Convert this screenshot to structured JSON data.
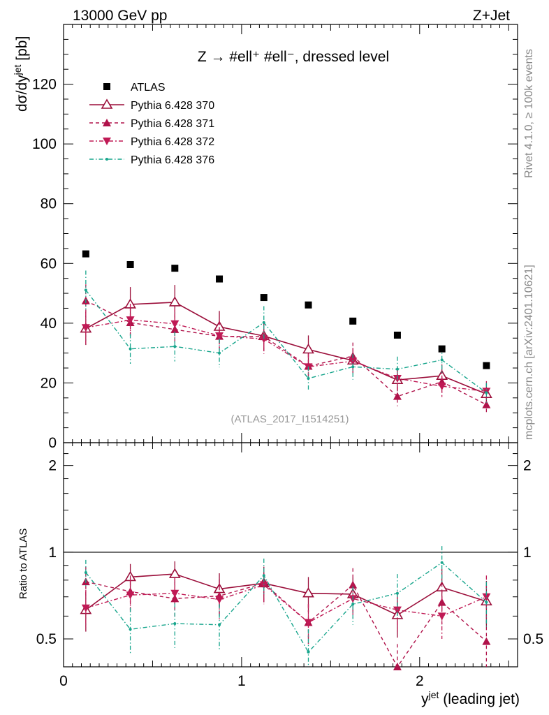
{
  "header": {
    "left": "13000 GeV pp",
    "right": "Z+Jet",
    "plot_title": "Z → #ell⁺ #ell⁻, dressed level",
    "analysis_id": "(ATLAS_2017_I1514251)",
    "rivet_label": "Rivet 4.1.0, ≥ 100k events",
    "mcplots_label": "mcplots.cern.ch [arXiv:2401.10621]"
  },
  "legend": {
    "atlas": "ATLAS",
    "p370": "Pythia 6.428 370",
    "p371": "Pythia 6.428 371",
    "p372": "Pythia 6.428 372",
    "p376": "Pythia 6.428 376"
  },
  "chart_data": [
    {
      "type": "scatter",
      "panel": "main",
      "title": "Z → #ell⁺ #ell⁻, dressed level",
      "ylabel": "dσ/dy^jet [pb]",
      "xlabel": "y^jet (leading jet)",
      "xlim": [
        0,
        2.55
      ],
      "ylim": [
        0,
        140
      ],
      "yticks": [
        0,
        20,
        40,
        60,
        80,
        100,
        120
      ],
      "x": [
        0.125,
        0.375,
        0.625,
        0.875,
        1.125,
        1.375,
        1.625,
        1.875,
        2.125,
        2.375
      ],
      "series": [
        {
          "name": "ATLAS",
          "values": [
            63.2,
            59.6,
            58.4,
            54.8,
            48.6,
            46.1,
            40.7,
            36.0,
            31.4,
            25.8
          ],
          "errors": [
            0.6,
            0.6,
            0.6,
            0.6,
            0.6,
            0.6,
            0.5,
            0.5,
            0.5,
            0.5
          ],
          "color": "#000000"
        },
        {
          "name": "Pythia 6.428 370",
          "values": [
            38.2,
            46.3,
            47.0,
            38.8,
            35.7,
            31.2,
            27.5,
            21.0,
            22.4,
            16.3
          ],
          "errors": [
            5.5,
            5.8,
            5.8,
            5.3,
            5.0,
            4.7,
            4.2,
            3.8,
            3.8,
            3.3
          ],
          "color": "#9b0e3a"
        },
        {
          "name": "Pythia 6.428 371",
          "values": [
            47.5,
            40.2,
            37.9,
            35.6,
            35.5,
            25.6,
            29.0,
            15.5,
            20.4,
            12.7
          ],
          "errors": [
            5.5,
            5.3,
            5.2,
            5.0,
            5.0,
            4.3,
            4.5,
            3.3,
            3.8,
            2.9
          ],
          "color": "#b0124a"
        },
        {
          "name": "Pythia 6.428 372",
          "values": [
            38.5,
            41.1,
            39.8,
            35.8,
            34.7,
            25.4,
            27.3,
            21.5,
            18.9,
            17.2
          ],
          "errors": [
            5.4,
            5.4,
            5.3,
            5.0,
            5.0,
            4.3,
            4.4,
            3.8,
            3.6,
            3.4
          ],
          "color": "#c01a55"
        },
        {
          "name": "Pythia 6.428 376",
          "values": [
            51.1,
            31.4,
            32.2,
            30.0,
            40.2,
            21.5,
            25.4,
            24.6,
            27.7,
            16.7
          ],
          "errors": [
            6.5,
            5.0,
            5.0,
            4.8,
            5.5,
            4.0,
            4.3,
            4.2,
            4.5,
            3.3
          ],
          "color": "#17a58c"
        }
      ]
    },
    {
      "type": "scatter",
      "panel": "ratio",
      "ylabel": "Ratio to ATLAS",
      "xlabel": "y^jet (leading jet)",
      "xlim": [
        0,
        2.55
      ],
      "ylim": [
        0.4,
        2.4
      ],
      "yscale": "log",
      "yticks": [
        0.5,
        1,
        2
      ],
      "xticks": [
        0,
        1,
        2
      ],
      "x": [
        0.125,
        0.375,
        0.625,
        0.875,
        1.125,
        1.375,
        1.625,
        1.875,
        2.125,
        2.375
      ],
      "series": [
        {
          "name": "Pythia 6.428 370",
          "values": [
            0.63,
            0.82,
            0.84,
            0.745,
            0.78,
            0.72,
            0.715,
            0.605,
            0.755,
            0.675
          ],
          "errors": [
            0.1,
            0.09,
            0.09,
            0.1,
            0.11,
            0.1,
            0.1,
            0.1,
            0.12,
            0.12
          ],
          "color": "#9b0e3a"
        },
        {
          "name": "Pythia 6.428 371",
          "values": [
            0.79,
            0.73,
            0.69,
            0.705,
            0.78,
            0.57,
            0.77,
            0.4,
            0.67,
            0.49
          ],
          "errors": [
            0.1,
            0.1,
            0.1,
            0.1,
            0.11,
            0.09,
            0.11,
            0.08,
            0.11,
            0.09
          ],
          "color": "#b0124a"
        },
        {
          "name": "Pythia 6.428 372",
          "values": [
            0.64,
            0.71,
            0.72,
            0.685,
            0.77,
            0.57,
            0.69,
            0.63,
            0.6,
            0.7
          ],
          "errors": [
            0.1,
            0.1,
            0.1,
            0.1,
            0.11,
            0.09,
            0.1,
            0.1,
            0.1,
            0.13
          ],
          "color": "#c01a55"
        },
        {
          "name": "Pythia 6.428 376",
          "values": [
            0.85,
            0.54,
            0.565,
            0.56,
            0.83,
            0.45,
            0.66,
            0.72,
            0.92,
            0.67
          ],
          "errors": [
            0.09,
            0.1,
            0.1,
            0.1,
            0.12,
            0.09,
            0.1,
            0.12,
            0.13,
            0.12
          ],
          "color": "#17a58c"
        }
      ]
    }
  ]
}
